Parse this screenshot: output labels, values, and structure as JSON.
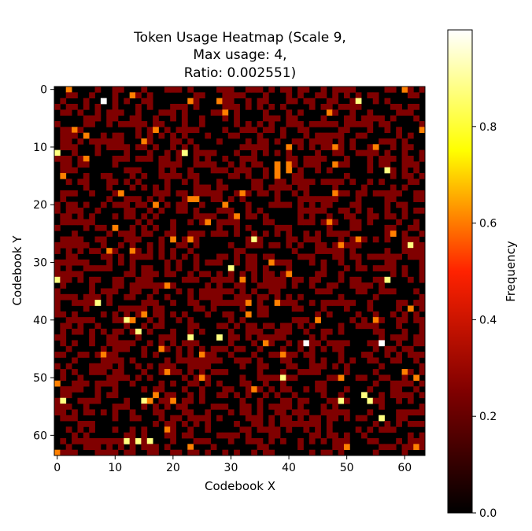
{
  "chart_data": {
    "type": "heatmap",
    "title_lines": [
      "Token Usage Heatmap (Scale 9,",
      "Max usage: 4,",
      "Ratio: 0.002551)"
    ],
    "xlabel": "Codebook X",
    "ylabel": "Codebook Y",
    "grid_size": [
      64,
      64
    ],
    "x_ticks": [
      0,
      10,
      20,
      30,
      40,
      50,
      60
    ],
    "y_ticks": [
      0,
      10,
      20,
      30,
      40,
      50,
      60
    ],
    "colorbar": {
      "label": "Frequency",
      "ticks": [
        0.0,
        0.2,
        0.4,
        0.6,
        0.8
      ],
      "tick_labels": [
        "0.0",
        "0.2",
        "0.4",
        "0.6",
        "0.8"
      ],
      "range": [
        0,
        1
      ],
      "colormap": "afmhot"
    },
    "levels": [
      0,
      0.25,
      0.5,
      0.75,
      1.0
    ],
    "density": {
      "zero": 0.55,
      "quarter": 0.43,
      "half_or_more": 0.02
    },
    "seed": 9,
    "cells": [
      {
        "x": 8,
        "y": 2,
        "v": 1.0
      },
      {
        "x": 52,
        "y": 2,
        "v": 0.75
      },
      {
        "x": 0,
        "y": 11,
        "v": 0.75
      },
      {
        "x": 22,
        "y": 11,
        "v": 0.75
      },
      {
        "x": 57,
        "y": 14,
        "v": 0.75
      },
      {
        "x": 34,
        "y": 26,
        "v": 0.75
      },
      {
        "x": 61,
        "y": 27,
        "v": 0.75
      },
      {
        "x": 30,
        "y": 31,
        "v": 0.75
      },
      {
        "x": 0,
        "y": 33,
        "v": 0.75
      },
      {
        "x": 57,
        "y": 33,
        "v": 0.75
      },
      {
        "x": 7,
        "y": 37,
        "v": 0.75
      },
      {
        "x": 12,
        "y": 40,
        "v": 0.75
      },
      {
        "x": 14,
        "y": 42,
        "v": 0.75
      },
      {
        "x": 23,
        "y": 43,
        "v": 0.75
      },
      {
        "x": 28,
        "y": 43,
        "v": 0.75
      },
      {
        "x": 43,
        "y": 44,
        "v": 1.0
      },
      {
        "x": 56,
        "y": 44,
        "v": 1.0
      },
      {
        "x": 39,
        "y": 50,
        "v": 0.75
      },
      {
        "x": 53,
        "y": 53,
        "v": 0.75
      },
      {
        "x": 1,
        "y": 54,
        "v": 0.75
      },
      {
        "x": 15,
        "y": 54,
        "v": 0.75
      },
      {
        "x": 49,
        "y": 54,
        "v": 0.75
      },
      {
        "x": 54,
        "y": 54,
        "v": 0.75
      },
      {
        "x": 56,
        "y": 57,
        "v": 0.75
      },
      {
        "x": 12,
        "y": 61,
        "v": 0.75
      },
      {
        "x": 14,
        "y": 61,
        "v": 0.75
      },
      {
        "x": 16,
        "y": 61,
        "v": 0.75
      },
      {
        "x": 19,
        "y": 59,
        "v": 0.5
      },
      {
        "x": 50,
        "y": 62,
        "v": 0.5
      }
    ]
  }
}
